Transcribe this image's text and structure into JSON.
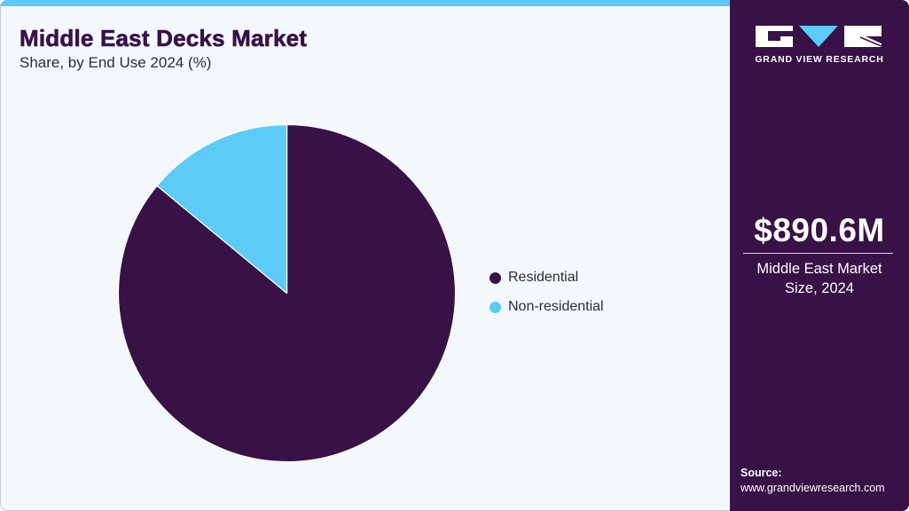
{
  "header": {
    "title": "Middle East Decks Market",
    "subtitle": "Share, by End Use 2024 (%)"
  },
  "colors": {
    "accent_bar": "#5ccbf6",
    "residential": "#381147",
    "non_residential": "#5ccbf6",
    "side_panel": "#381147",
    "background": "#f3f8fc"
  },
  "legend": {
    "items": [
      {
        "label": "Residential",
        "color": "#381147"
      },
      {
        "label": "Non-residential",
        "color": "#5ccbf6"
      }
    ]
  },
  "side_panel": {
    "brand": "GRAND VIEW RESEARCH",
    "market_value": "$890.6M",
    "market_label_line1": "Middle East Market",
    "market_label_line2": "Size, 2024",
    "source_label": "Source:",
    "source_url": "www.grandviewresearch.com"
  },
  "chart_data": {
    "type": "pie",
    "title": "Middle East Decks Market",
    "subtitle": "Share, by End Use 2024 (%)",
    "categories": [
      "Residential",
      "Non-residential"
    ],
    "values": [
      86,
      14
    ],
    "colors": [
      "#381147",
      "#5ccbf6"
    ],
    "start_angle_deg": 0,
    "direction": "clockwise from 12 o'clock (Residential first)",
    "legend_position": "right",
    "data_labels": false
  }
}
